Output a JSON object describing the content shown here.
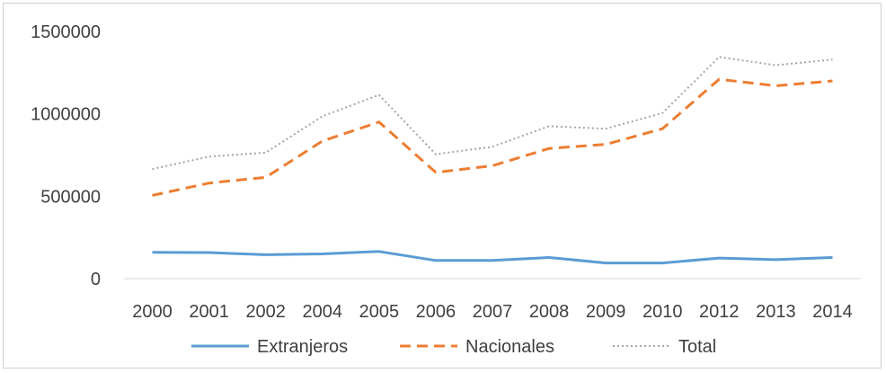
{
  "chart_data": {
    "type": "line",
    "title": "",
    "xlabel": "",
    "ylabel": "",
    "categories": [
      "2000",
      "2001",
      "2002",
      "2004",
      "2005",
      "2006",
      "2007",
      "2008",
      "2009",
      "2010",
      "2012",
      "2013",
      "2014"
    ],
    "ylim": [
      0,
      1500000
    ],
    "yticks": [
      0,
      500000,
      1000000,
      1500000
    ],
    "ytick_labels": [
      "0",
      "500000",
      "1000000",
      "1500000"
    ],
    "grid": false,
    "legend_position": "bottom",
    "series": [
      {
        "name": "Extranjeros",
        "style": "solid",
        "color": "#5b9bd5",
        "values": [
          160000,
          158000,
          145000,
          150000,
          165000,
          110000,
          110000,
          128000,
          95000,
          95000,
          125000,
          115000,
          128000
        ]
      },
      {
        "name": "Nacionales",
        "style": "dashed",
        "color": "#ed7d31",
        "values": [
          505000,
          580000,
          615000,
          835000,
          950000,
          645000,
          685000,
          790000,
          815000,
          910000,
          1210000,
          1170000,
          1200000
        ]
      },
      {
        "name": "Total",
        "style": "dotted",
        "color": "#a5a5a5",
        "values": [
          665000,
          740000,
          765000,
          985000,
          1115000,
          755000,
          800000,
          925000,
          910000,
          1005000,
          1345000,
          1295000,
          1330000
        ]
      }
    ]
  }
}
